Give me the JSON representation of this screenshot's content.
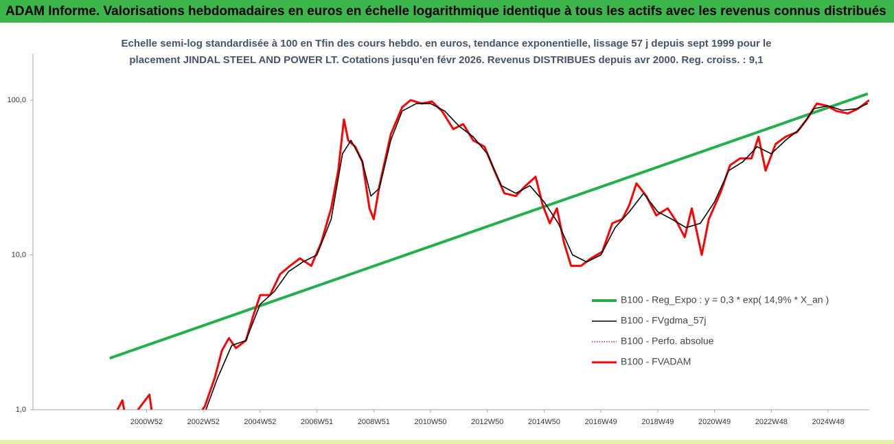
{
  "chart_data": {
    "type": "line",
    "title": "ADAM Informe. Valorisations hebdomadaires en euros en échelle logarithmique identique à tous les actifs avec les revenus connus distribués",
    "subtitle": [
      "Echelle semi-log standardisée à 100 en Tfin des cours hebdo. en euros, tendance exponentielle, lissage 57 j depuis sept 1999 pour le",
      "placement JINDAL STEEL AND POWER LT. Cotations jusqu'en févr 2026. Revenus DISTRIBUES depuis avr 2000. Reg. croiss. : 9,1"
    ],
    "log_y": true,
    "grid": false,
    "xlim": [
      1997.0,
      2026.45
    ],
    "xticks": [
      {
        "value": 2001,
        "label": "2000W52"
      },
      {
        "value": 2003,
        "label": "2002W52"
      },
      {
        "value": 2005,
        "label": "2004W52"
      },
      {
        "value": 2007,
        "label": "2006W51"
      },
      {
        "value": 2009,
        "label": "2008W51"
      },
      {
        "value": 2011,
        "label": "2010W50"
      },
      {
        "value": 2013,
        "label": "2012W50"
      },
      {
        "value": 2015,
        "label": "2014W50"
      },
      {
        "value": 2017,
        "label": "2016W49"
      },
      {
        "value": 2019,
        "label": "2018W49"
      },
      {
        "value": 2021,
        "label": "2020W49"
      },
      {
        "value": 2023,
        "label": "2022W48"
      },
      {
        "value": 2025,
        "label": "2024W48"
      }
    ],
    "ylim": [
      1,
      200
    ],
    "yticks": [
      {
        "value": 1,
        "label": "1,0"
      },
      {
        "value": 10,
        "label": "10,0"
      },
      {
        "value": 100,
        "label": "100,0"
      }
    ],
    "series": [
      {
        "name": "B100 - Reg_Expo : y = 0,3 * exp( 14,9% *  X_an )",
        "color": "#22b04c",
        "width": 4,
        "style": "solid",
        "x": [
          1999.7,
          2026.4
        ],
        "values": [
          2.15,
          110
        ]
      },
      {
        "name": "B100 - FVgdma_57j",
        "color": "#000000",
        "width": 1.6,
        "style": "solid",
        "x": [
          2003.0,
          2003.5,
          2004.0,
          2004.5,
          2005.0,
          2005.5,
          2006.0,
          2006.5,
          2007.0,
          2007.5,
          2007.9,
          2008.2,
          2008.6,
          2008.9,
          2009.2,
          2009.6,
          2010.0,
          2010.5,
          2011.0,
          2011.5,
          2012.0,
          2012.5,
          2013.0,
          2013.5,
          2014.0,
          2014.5,
          2015.0,
          2015.5,
          2016.0,
          2016.5,
          2017.0,
          2017.5,
          2018.0,
          2018.5,
          2019.0,
          2019.5,
          2020.0,
          2020.5,
          2021.0,
          2021.5,
          2022.0,
          2022.5,
          2023.0,
          2023.5,
          2024.0,
          2024.5,
          2025.0,
          2025.5,
          2026.0,
          2026.4
        ],
        "values": [
          0.9,
          1.6,
          2.6,
          2.8,
          4.8,
          5.8,
          7.8,
          9,
          10,
          17,
          45,
          55,
          40,
          24,
          27,
          55,
          85,
          95,
          95,
          85,
          68,
          58,
          45,
          28,
          25,
          28,
          22,
          16,
          10,
          9,
          10,
          15,
          19,
          25,
          19,
          17,
          15,
          16,
          22,
          35,
          40,
          50,
          45,
          55,
          65,
          88,
          92,
          86,
          88,
          95
        ]
      },
      {
        "name": "B100 - Perfo. absolue",
        "color": "#c00000",
        "width": 1.2,
        "style": "dotted",
        "x": [
          1999.7,
          2000.15,
          2000.3,
          2001.1,
          2001.25,
          2002.8,
          2003.05,
          2003.4,
          2003.65,
          2003.9,
          2004.15,
          2004.5,
          2004.75,
          2005.0,
          2005.35,
          2005.7,
          2006.05,
          2006.4,
          2006.8,
          2007.15,
          2007.5,
          2007.75,
          2007.95,
          2008.1,
          2008.35,
          2008.6,
          2008.85,
          2009.0,
          2009.2,
          2009.6,
          2010.0,
          2010.3,
          2010.7,
          2011.05,
          2011.4,
          2011.8,
          2012.15,
          2012.5,
          2012.9,
          2013.25,
          2013.6,
          2014.0,
          2014.35,
          2014.7,
          2014.95,
          2015.2,
          2015.45,
          2015.7,
          2015.95,
          2016.3,
          2016.65,
          2017.05,
          2017.4,
          2017.75,
          2018.0,
          2018.25,
          2018.6,
          2018.95,
          2019.35,
          2019.7,
          2019.95,
          2020.2,
          2020.55,
          2020.8,
          2021.2,
          2021.55,
          2021.9,
          2022.3,
          2022.55,
          2022.8,
          2023.15,
          2023.5,
          2023.9,
          2024.25,
          2024.6,
          2024.95,
          2025.3,
          2025.7,
          2026.05,
          2026.45
        ],
        "values": [
          0.8,
          1.15,
          0.8,
          1.25,
          0.8,
          0.9,
          1.05,
          1.6,
          2.4,
          2.9,
          2.5,
          2.8,
          4.0,
          5.5,
          5.5,
          7.5,
          8.5,
          9.5,
          8.5,
          12,
          20,
          35,
          75,
          55,
          50,
          40,
          20,
          17,
          28,
          60,
          90,
          100,
          95,
          98,
          85,
          65,
          70,
          55,
          50,
          35,
          25,
          24,
          28,
          32,
          21,
          16,
          20,
          12,
          8.5,
          8.5,
          9.5,
          10.5,
          16,
          17,
          21,
          29,
          24,
          18,
          20,
          16,
          13,
          20,
          10,
          17,
          25,
          38,
          42,
          42,
          58,
          35,
          52,
          58,
          62,
          75,
          95,
          92,
          85,
          82,
          88,
          100
        ]
      },
      {
        "name": "B100 - FVADAM",
        "color": "#ff0000",
        "width": 3,
        "style": "solid",
        "x": [
          1999.7,
          2000.15,
          2000.3,
          2001.1,
          2001.25,
          2002.8,
          2003.05,
          2003.4,
          2003.65,
          2003.9,
          2004.15,
          2004.5,
          2004.75,
          2005.0,
          2005.35,
          2005.7,
          2006.05,
          2006.4,
          2006.8,
          2007.15,
          2007.5,
          2007.75,
          2007.95,
          2008.1,
          2008.35,
          2008.6,
          2008.85,
          2009.0,
          2009.2,
          2009.6,
          2010.0,
          2010.3,
          2010.7,
          2011.05,
          2011.4,
          2011.8,
          2012.15,
          2012.5,
          2012.9,
          2013.25,
          2013.6,
          2014.0,
          2014.35,
          2014.7,
          2014.95,
          2015.2,
          2015.45,
          2015.7,
          2015.95,
          2016.3,
          2016.65,
          2017.05,
          2017.4,
          2017.75,
          2018.0,
          2018.25,
          2018.6,
          2018.95,
          2019.35,
          2019.7,
          2019.95,
          2020.2,
          2020.55,
          2020.8,
          2021.2,
          2021.55,
          2021.9,
          2022.3,
          2022.55,
          2022.8,
          2023.15,
          2023.5,
          2023.9,
          2024.25,
          2024.6,
          2024.95,
          2025.3,
          2025.7,
          2026.05,
          2026.45
        ],
        "values": [
          0.8,
          1.15,
          0.8,
          1.25,
          0.8,
          0.9,
          1.05,
          1.6,
          2.4,
          2.9,
          2.5,
          2.8,
          4.0,
          5.5,
          5.5,
          7.5,
          8.5,
          9.5,
          8.5,
          12,
          20,
          35,
          75,
          55,
          50,
          40,
          20,
          17,
          28,
          60,
          90,
          100,
          95,
          98,
          85,
          65,
          70,
          55,
          50,
          35,
          25,
          24,
          28,
          32,
          21,
          16,
          20,
          12,
          8.5,
          8.5,
          9.5,
          10.5,
          16,
          17,
          21,
          29,
          24,
          18,
          20,
          16,
          13,
          20,
          10,
          17,
          25,
          38,
          42,
          42,
          58,
          35,
          52,
          58,
          62,
          75,
          95,
          92,
          85,
          82,
          88,
          100
        ]
      }
    ]
  }
}
